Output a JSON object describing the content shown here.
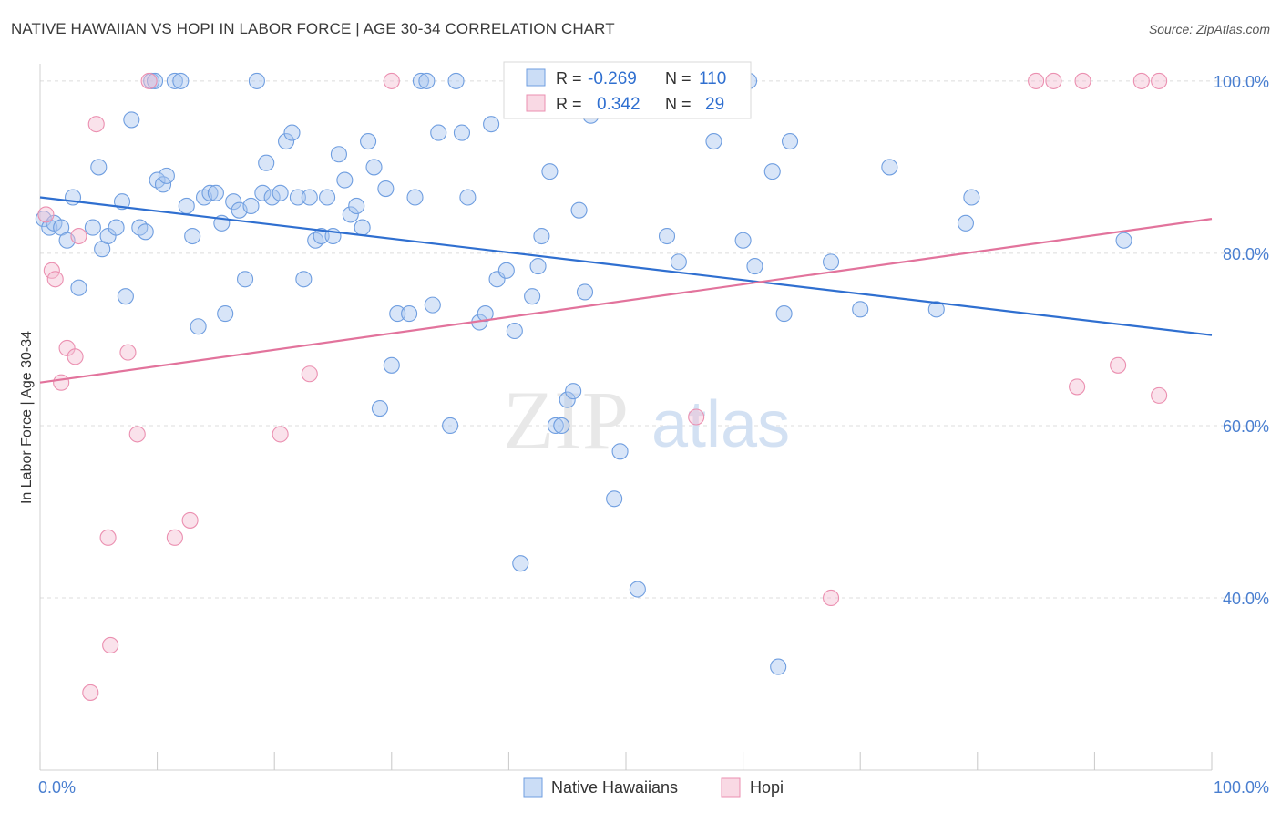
{
  "title": "NATIVE HAWAIIAN VS HOPI IN LABOR FORCE | AGE 30-34 CORRELATION CHART",
  "source": "Source: ZipAtlas.com",
  "watermark": {
    "zip": "ZIP",
    "atlas": "atlas"
  },
  "legend_box": {
    "rows": [
      {
        "r_label": "R =",
        "r_value": "-0.269",
        "n_label": "N =",
        "n_value": "110",
        "color": "#6f9ee0"
      },
      {
        "r_label": "R =",
        "r_value": "0.342",
        "n_label": "N =",
        "n_value": "29",
        "color": "#eb8fb0"
      }
    ]
  },
  "chart_data": {
    "type": "scatter",
    "xlabel": "",
    "ylabel": "In Labor Force | Age 30-34",
    "xlim": [
      0,
      100
    ],
    "ylim": [
      20,
      102
    ],
    "x_tick_labels": [
      {
        "value": 0,
        "label": "0.0%"
      },
      {
        "value": 100,
        "label": "100.0%"
      }
    ],
    "y_tick_labels": [
      {
        "value": 100,
        "label": "100.0%"
      },
      {
        "value": 80,
        "label": "80.0%"
      },
      {
        "value": 60,
        "label": "60.0%"
      },
      {
        "value": 40,
        "label": "40.0%"
      }
    ],
    "y_gridlines": [
      100,
      80,
      60,
      40
    ],
    "grid": true,
    "series": [
      {
        "name": "Native Hawaiians",
        "color": "#6f9ee0",
        "fill": "#a9c6f0",
        "trend": {
          "x": [
            0,
            100
          ],
          "y": [
            86.5,
            70.5
          ],
          "color": "#2f6fd0"
        },
        "points": [
          [
            0.3,
            84.0
          ],
          [
            0.8,
            83.0
          ],
          [
            1.2,
            83.5
          ],
          [
            1.8,
            83.0
          ],
          [
            2.3,
            81.5
          ],
          [
            2.8,
            86.5
          ],
          [
            3.3,
            76.0
          ],
          [
            4.5,
            83.0
          ],
          [
            5.0,
            90.0
          ],
          [
            5.3,
            80.5
          ],
          [
            5.8,
            82.0
          ],
          [
            6.5,
            83.0
          ],
          [
            7.0,
            86.0
          ],
          [
            7.3,
            75.0
          ],
          [
            7.8,
            95.5
          ],
          [
            8.5,
            83.0
          ],
          [
            9.0,
            82.5
          ],
          [
            9.5,
            100.0
          ],
          [
            9.8,
            100.0
          ],
          [
            10.0,
            88.5
          ],
          [
            10.5,
            88.0
          ],
          [
            10.8,
            89.0
          ],
          [
            11.5,
            100.0
          ],
          [
            12.0,
            100.0
          ],
          [
            12.5,
            85.5
          ],
          [
            13.0,
            82.0
          ],
          [
            13.5,
            71.5
          ],
          [
            14.0,
            86.5
          ],
          [
            14.5,
            87.0
          ],
          [
            15.0,
            87.0
          ],
          [
            15.5,
            83.5
          ],
          [
            15.8,
            73.0
          ],
          [
            16.5,
            86.0
          ],
          [
            17.0,
            85.0
          ],
          [
            17.5,
            77.0
          ],
          [
            18.0,
            85.5
          ],
          [
            18.5,
            100.0
          ],
          [
            19.0,
            87.0
          ],
          [
            19.3,
            90.5
          ],
          [
            19.8,
            86.5
          ],
          [
            20.5,
            87.0
          ],
          [
            21.0,
            93.0
          ],
          [
            21.5,
            94.0
          ],
          [
            22.0,
            86.5
          ],
          [
            22.5,
            77.0
          ],
          [
            23.0,
            86.5
          ],
          [
            23.5,
            81.5
          ],
          [
            24.0,
            82.0
          ],
          [
            24.5,
            86.5
          ],
          [
            25.0,
            82.0
          ],
          [
            25.5,
            91.5
          ],
          [
            26.0,
            88.5
          ],
          [
            26.5,
            84.5
          ],
          [
            27.0,
            85.5
          ],
          [
            27.5,
            83.0
          ],
          [
            28.0,
            93.0
          ],
          [
            28.5,
            90.0
          ],
          [
            29.0,
            62.0
          ],
          [
            29.5,
            87.5
          ],
          [
            30.0,
            67.0
          ],
          [
            30.5,
            73.0
          ],
          [
            31.5,
            73.0
          ],
          [
            32.0,
            86.5
          ],
          [
            32.5,
            100.0
          ],
          [
            33.0,
            100.0
          ],
          [
            33.5,
            74.0
          ],
          [
            34.0,
            94.0
          ],
          [
            35.0,
            60.0
          ],
          [
            35.5,
            100.0
          ],
          [
            36.0,
            94.0
          ],
          [
            36.5,
            86.5
          ],
          [
            37.5,
            72.0
          ],
          [
            38.0,
            73.0
          ],
          [
            38.5,
            95.0
          ],
          [
            39.0,
            77.0
          ],
          [
            39.8,
            78.0
          ],
          [
            40.5,
            71.0
          ],
          [
            41.0,
            44.0
          ],
          [
            42.0,
            75.0
          ],
          [
            42.5,
            78.5
          ],
          [
            42.8,
            82.0
          ],
          [
            43.5,
            89.5
          ],
          [
            44.0,
            60.0
          ],
          [
            44.5,
            60.0
          ],
          [
            45.0,
            63.0
          ],
          [
            45.5,
            64.0
          ],
          [
            46.0,
            85.0
          ],
          [
            46.5,
            75.5
          ],
          [
            47.0,
            96.0
          ],
          [
            49.0,
            51.5
          ],
          [
            49.5,
            57.0
          ],
          [
            51.0,
            41.0
          ],
          [
            53.5,
            82.0
          ],
          [
            54.5,
            79.0
          ],
          [
            57.5,
            93.0
          ],
          [
            60.0,
            81.5
          ],
          [
            60.5,
            100.0
          ],
          [
            61.0,
            78.5
          ],
          [
            62.5,
            89.5
          ],
          [
            63.5,
            73.0
          ],
          [
            64.0,
            93.0
          ],
          [
            67.5,
            79.0
          ],
          [
            70.0,
            73.5
          ],
          [
            72.5,
            90.0
          ],
          [
            76.5,
            73.5
          ],
          [
            79.0,
            83.5
          ],
          [
            79.5,
            86.5
          ],
          [
            92.5,
            81.5
          ],
          [
            63.0,
            32.0
          ]
        ]
      },
      {
        "name": "Hopi",
        "color": "#eb8fb0",
        "fill": "#f5bfd2",
        "trend": {
          "x": [
            0,
            100
          ],
          "y": [
            65.0,
            84.0
          ],
          "color": "#e2739c"
        },
        "points": [
          [
            0.5,
            84.5
          ],
          [
            1.0,
            78.0
          ],
          [
            1.3,
            77.0
          ],
          [
            1.8,
            65.0
          ],
          [
            2.3,
            69.0
          ],
          [
            3.0,
            68.0
          ],
          [
            3.3,
            82.0
          ],
          [
            4.3,
            29.0
          ],
          [
            4.8,
            95.0
          ],
          [
            5.8,
            47.0
          ],
          [
            6.0,
            34.5
          ],
          [
            7.5,
            68.5
          ],
          [
            8.3,
            59.0
          ],
          [
            9.3,
            100.0
          ],
          [
            11.5,
            47.0
          ],
          [
            12.8,
            49.0
          ],
          [
            20.5,
            59.0
          ],
          [
            23.0,
            66.0
          ],
          [
            30.0,
            100.0
          ],
          [
            56.0,
            61.0
          ],
          [
            67.5,
            40.0
          ],
          [
            85.0,
            100.0
          ],
          [
            86.5,
            100.0
          ],
          [
            89.0,
            100.0
          ],
          [
            88.5,
            64.5
          ],
          [
            92.0,
            67.0
          ],
          [
            94.0,
            100.0
          ],
          [
            95.5,
            100.0
          ],
          [
            95.5,
            63.5
          ]
        ]
      }
    ]
  },
  "bottom_legend": [
    {
      "label": "Native Hawaiians",
      "color": "#6f9ee0",
      "fill": "#a9c6f0"
    },
    {
      "label": "Hopi",
      "color": "#eb8fb0",
      "fill": "#f5bfd2"
    }
  ]
}
